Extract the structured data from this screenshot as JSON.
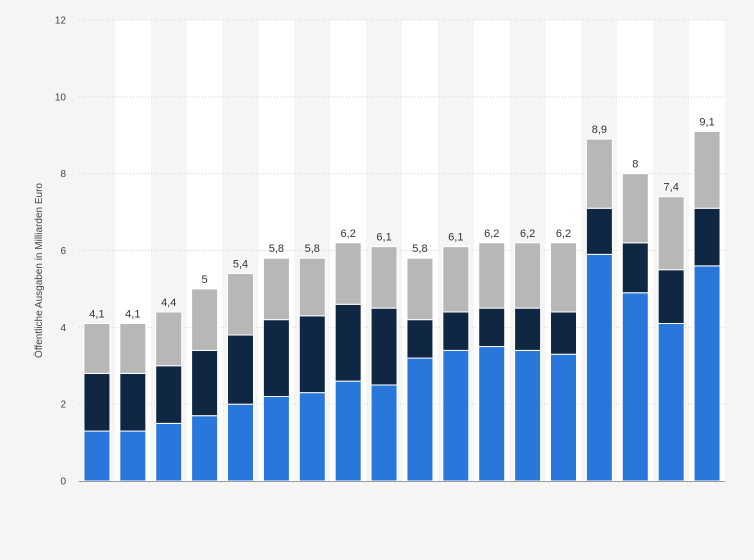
{
  "chart_data": {
    "type": "bar",
    "stacked": true,
    "categories": [
      "",
      "",
      "",
      "",
      "",
      "",
      "",
      "",
      "",
      "",
      "",
      "",
      "",
      "",
      "",
      "",
      "",
      ""
    ],
    "series": [
      {
        "values": [
          1.3,
          1.3,
          1.5,
          1.7,
          2.0,
          2.2,
          2.3,
          2.6,
          2.5,
          3.2,
          3.4,
          3.5,
          3.4,
          3.3,
          5.9,
          4.9,
          4.1,
          5.6
        ]
      },
      {
        "values": [
          1.5,
          1.5,
          1.5,
          1.7,
          1.8,
          2.0,
          2.0,
          2.0,
          2.0,
          1.0,
          1.0,
          1.0,
          1.1,
          1.1,
          1.2,
          1.3,
          1.4,
          1.5
        ]
      },
      {
        "values": [
          1.3,
          1.3,
          1.4,
          1.6,
          1.6,
          1.6,
          1.5,
          1.6,
          1.6,
          1.6,
          1.7,
          1.7,
          1.7,
          1.8,
          1.8,
          1.8,
          1.9,
          2.0
        ]
      }
    ],
    "totals": [
      4.1,
      4.1,
      4.4,
      5,
      5.4,
      5.8,
      5.8,
      6.2,
      6.1,
      5.8,
      6.1,
      6.2,
      6.2,
      6.2,
      8.9,
      8,
      7.4,
      9.1
    ],
    "total_labels": [
      "4,1",
      "4,1",
      "4,4",
      "5",
      "5,4",
      "5,8",
      "5,8",
      "6,2",
      "6,1",
      "5,8",
      "6,1",
      "6,2",
      "6,2",
      "6,2",
      "8,9",
      "8",
      "7,4",
      "9,1"
    ],
    "series_colors": [
      "#2a77db",
      "#0f2742",
      "#b7b7b7"
    ],
    "ylabel": "Öffentliche Ausgaben in Milliarden Euro",
    "xlabel": "",
    "title": "",
    "ylim": [
      0,
      12
    ],
    "yticks": [
      0,
      2,
      4,
      6,
      8,
      10,
      12
    ],
    "ytick_labels": [
      "0",
      "2",
      "4",
      "6",
      "8",
      "10",
      "12"
    ],
    "grid": true,
    "legend": "none"
  }
}
